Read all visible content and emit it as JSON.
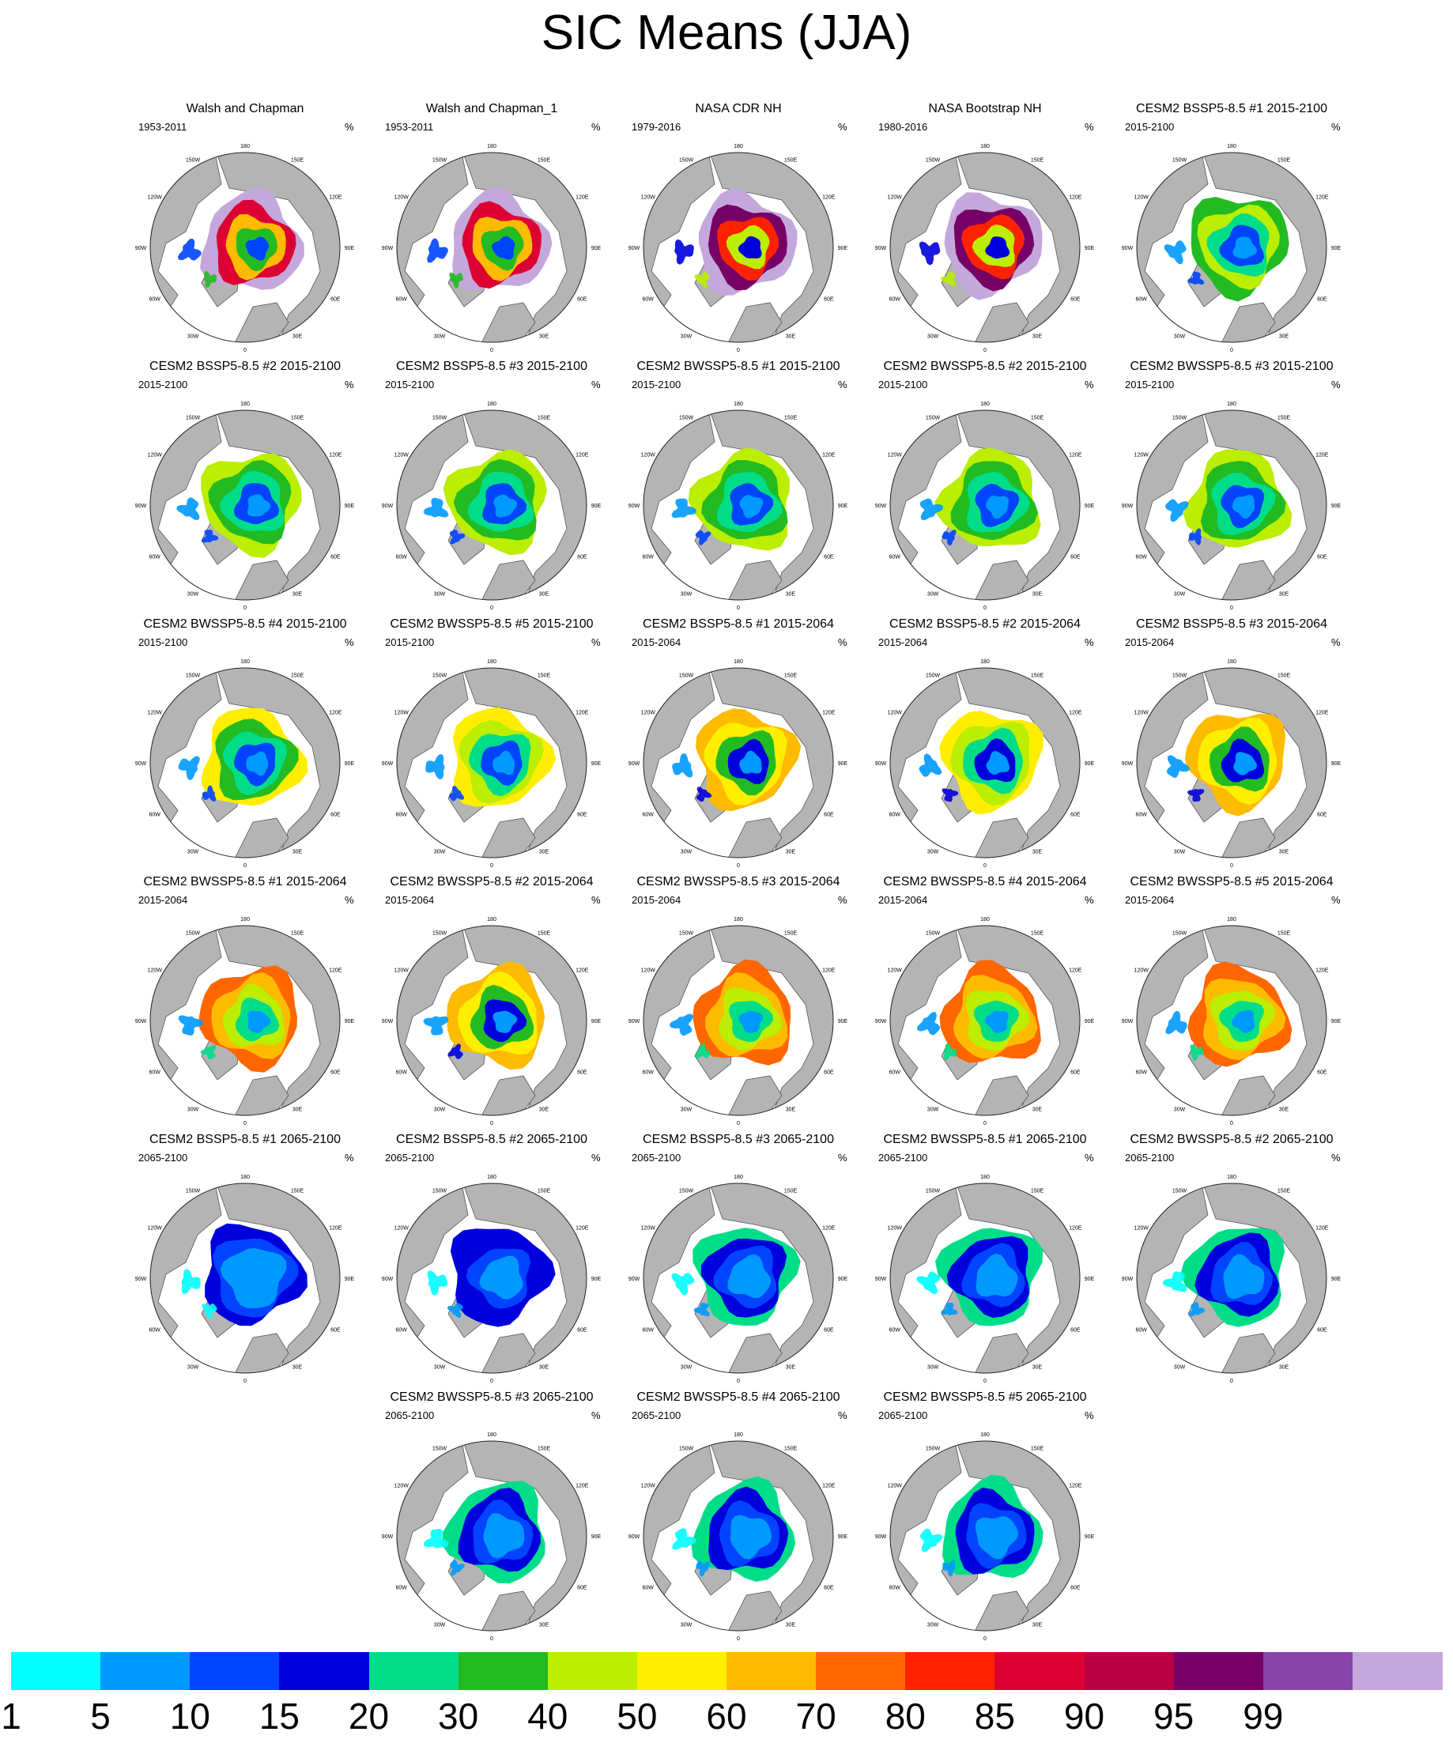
{
  "title": "SIC Means (JJA)",
  "panel_unit": "%",
  "projection_labels": {
    "top": "180",
    "upper_left": "150W",
    "upper_right": "150E",
    "left_upper": "120W",
    "right_upper": "120E",
    "left": "90W",
    "right": "90E",
    "left_lower": "60W",
    "right_lower": "60E",
    "lower_left": "30W",
    "lower_right": "30E",
    "bottom": "0"
  },
  "colors": {
    "land": "#b4b4b4",
    "coast": "#555555",
    "ocean": "#ffffff"
  },
  "colorbar": {
    "boundaries": [
      "1",
      "5",
      "10",
      "15",
      "20",
      "30",
      "40",
      "50",
      "60",
      "70",
      "80",
      "85",
      "90",
      "95",
      "99"
    ],
    "colors": [
      "#00ffff",
      "#0099ff",
      "#0044ff",
      "#0000dd",
      "#00dd88",
      "#22bb22",
      "#bbee00",
      "#ffee00",
      "#ffbb00",
      "#ff6600",
      "#ff2200",
      "#dd0033",
      "#bb0044",
      "#770066",
      "#8844aa",
      "#c4a8dc"
    ]
  },
  "panels": [
    {
      "title": "Walsh and Chapman",
      "period": "1953-2011",
      "levels": [
        15,
        11,
        8,
        5,
        2
      ]
    },
    {
      "title": "Walsh and Chapman_1",
      "period": "1953-2011",
      "levels": [
        15,
        11,
        8,
        5,
        2
      ]
    },
    {
      "title": "NASA CDR NH",
      "period": "1979-2016",
      "levels": [
        15,
        13,
        10,
        6,
        3
      ]
    },
    {
      "title": "NASA Bootstrap NH",
      "period": "1980-2016",
      "levels": [
        15,
        13,
        10,
        6,
        3
      ]
    },
    {
      "title": "CESM2 BSSP5-8.5 #1 2015-2100",
      "period": "2015-2100",
      "levels": [
        5,
        6,
        4,
        2,
        1
      ]
    },
    {
      "title": "CESM2 BSSP5-8.5 #2 2015-2100",
      "period": "2015-2100",
      "levels": [
        6,
        5,
        4,
        2,
        1
      ]
    },
    {
      "title": "CESM2 BSSP5-8.5 #3 2015-2100",
      "period": "2015-2100",
      "levels": [
        6,
        5,
        4,
        2,
        1
      ]
    },
    {
      "title": "CESM2 BWSSP5-8.5 #1 2015-2100",
      "period": "2015-2100",
      "levels": [
        6,
        5,
        4,
        2,
        1
      ]
    },
    {
      "title": "CESM2 BWSSP5-8.5 #2 2015-2100",
      "period": "2015-2100",
      "levels": [
        6,
        5,
        4,
        2,
        1
      ]
    },
    {
      "title": "CESM2 BWSSP5-8.5 #3 2015-2100",
      "period": "2015-2100",
      "levels": [
        6,
        5,
        4,
        2,
        1
      ]
    },
    {
      "title": "CESM2 BWSSP5-8.5 #4 2015-2100",
      "period": "2015-2100",
      "levels": [
        7,
        5,
        4,
        2,
        1
      ]
    },
    {
      "title": "CESM2 BWSSP5-8.5 #5 2015-2100",
      "period": "2015-2100",
      "levels": [
        7,
        6,
        4,
        2,
        1
      ]
    },
    {
      "title": "CESM2 BSSP5-8.5 #1 2015-2064",
      "period": "2015-2064",
      "levels": [
        8,
        7,
        5,
        3,
        1
      ]
    },
    {
      "title": "CESM2 BSSP5-8.5 #2 2015-2064",
      "period": "2015-2064",
      "levels": [
        7,
        6,
        4,
        3,
        1
      ]
    },
    {
      "title": "CESM2 BSSP5-8.5 #3 2015-2064",
      "period": "2015-2064",
      "levels": [
        8,
        7,
        5,
        3,
        1
      ]
    },
    {
      "title": "CESM2 BWSSP5-8.5 #1 2015-2064",
      "period": "2015-2064",
      "levels": [
        9,
        8,
        6,
        4,
        1
      ]
    },
    {
      "title": "CESM2 BWSSP5-8.5 #2 2015-2064",
      "period": "2015-2064",
      "levels": [
        8,
        7,
        5,
        3,
        1
      ]
    },
    {
      "title": "CESM2 BWSSP5-8.5 #3 2015-2064",
      "period": "2015-2064",
      "levels": [
        9,
        8,
        6,
        4,
        1
      ]
    },
    {
      "title": "CESM2 BWSSP5-8.5 #4 2015-2064",
      "period": "2015-2064",
      "levels": [
        9,
        8,
        6,
        4,
        1
      ]
    },
    {
      "title": "CESM2 BWSSP5-8.5 #5 2015-2064",
      "period": "2015-2064",
      "levels": [
        9,
        8,
        6,
        4,
        1
      ]
    },
    {
      "title": "CESM2 BSSP5-8.5 #1 2065-2100",
      "period": "2065-2100",
      "levels": [
        3,
        2,
        1,
        0,
        0
      ]
    },
    {
      "title": "CESM2 BSSP5-8.5 #2 2065-2100",
      "period": "2065-2100",
      "levels": [
        3,
        3,
        2,
        1,
        0
      ]
    },
    {
      "title": "CESM2 BSSP5-8.5 #3 2065-2100",
      "period": "2065-2100",
      "levels": [
        4,
        3,
        2,
        1,
        0
      ]
    },
    {
      "title": "CESM2 BWSSP5-8.5 #1 2065-2100",
      "period": "2065-2100",
      "levels": [
        4,
        3,
        2,
        1,
        0
      ]
    },
    {
      "title": "CESM2 BWSSP5-8.5 #2 2065-2100",
      "period": "2065-2100",
      "levels": [
        4,
        3,
        2,
        1,
        0
      ]
    },
    {
      "title": "CESM2 BWSSP5-8.5 #3 2065-2100",
      "period": "2065-2100",
      "levels": [
        4,
        3,
        2,
        1,
        0
      ]
    },
    {
      "title": "CESM2 BWSSP5-8.5 #4 2065-2100",
      "period": "2065-2100",
      "levels": [
        4,
        3,
        2,
        1,
        0
      ]
    },
    {
      "title": "CESM2 BWSSP5-8.5 #5 2065-2100",
      "period": "2065-2100",
      "levels": [
        4,
        3,
        2,
        1,
        0
      ]
    }
  ]
}
